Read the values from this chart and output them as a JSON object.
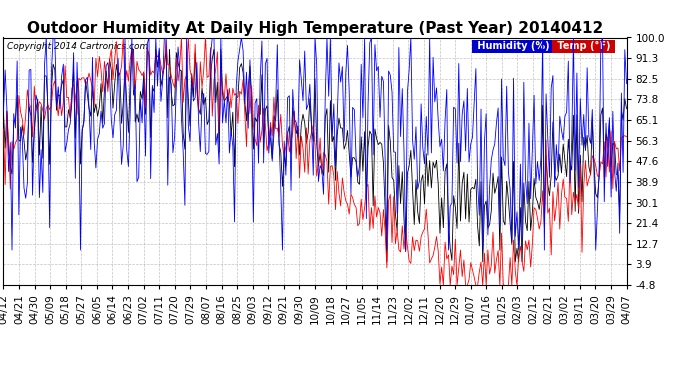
{
  "title": "Outdoor Humidity At Daily High Temperature (Past Year) 20140412",
  "copyright": "Copyright 2014 Cartronics.com",
  "legend_humidity": "Humidity (%)",
  "legend_temp": "Temp (°F)",
  "y_ticks": [
    100.0,
    91.3,
    82.5,
    73.8,
    65.1,
    56.3,
    47.6,
    38.9,
    30.1,
    21.4,
    12.7,
    3.9,
    -4.8
  ],
  "x_labels": [
    "04/12",
    "04/21",
    "04/30",
    "05/09",
    "05/18",
    "05/27",
    "06/05",
    "06/14",
    "06/23",
    "07/02",
    "07/11",
    "07/20",
    "07/29",
    "08/07",
    "08/16",
    "08/25",
    "09/03",
    "09/12",
    "09/21",
    "09/30",
    "10/09",
    "10/18",
    "10/27",
    "11/05",
    "11/14",
    "11/23",
    "12/02",
    "12/11",
    "12/20",
    "12/29",
    "01/07",
    "01/16",
    "01/25",
    "02/03",
    "02/12",
    "02/21",
    "03/02",
    "03/11",
    "03/20",
    "03/29",
    "04/07"
  ],
  "ylim": [
    -4.8,
    100.0
  ],
  "color_humidity": "#0000ff",
  "color_temp": "#ff0000",
  "color_black": "#000000",
  "bg_color": "#ffffff",
  "grid_color": "#888888",
  "title_fontsize": 11,
  "tick_fontsize": 7.5,
  "legend_bg_humidity": "#0000cc",
  "legend_bg_temp": "#cc0000"
}
